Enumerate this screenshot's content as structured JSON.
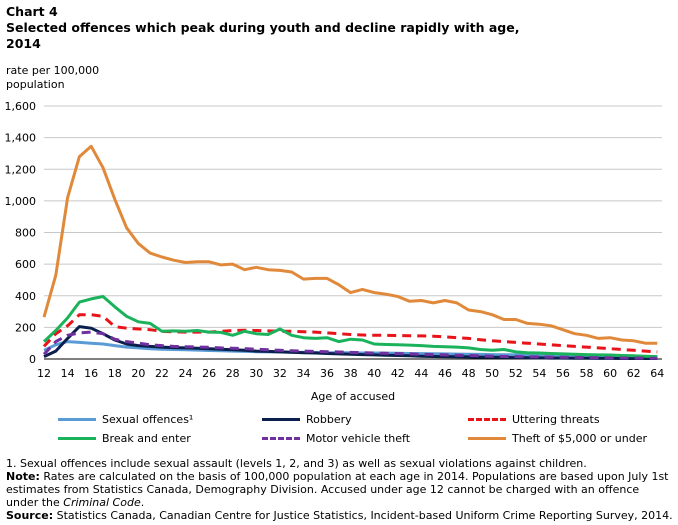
{
  "header": {
    "chart_label": "Chart 4",
    "title": "Selected offences which peak during youth and decline rapidly with age, 2014"
  },
  "y_axis_title": {
    "line1": "rate per 100,000",
    "line2": "population"
  },
  "legend": [
    {
      "label": "Sexual offences¹",
      "color": "#5b9bd5",
      "dash": "solid"
    },
    {
      "label": "Robbery",
      "color": "#0b1f4d",
      "dash": "solid"
    },
    {
      "label": "Uttering threats",
      "color": "#e8141a",
      "dash": "dashed"
    },
    {
      "label": "Break and enter",
      "color": "#1ab25b",
      "dash": "solid"
    },
    {
      "label": "Motor vehicle theft",
      "color": "#7030a0",
      "dash": "dashed"
    },
    {
      "label": "Theft of $5,000 or under",
      "color": "#e0893a",
      "dash": "solid"
    }
  ],
  "notes": {
    "footnote": "1. Sexual offences include sexual assault (levels 1, 2, and 3) as well as sexual violations against children.",
    "note_label": "Note:",
    "note_text_a": " Rates are calculated on the basis of 100,000 population at each age in 2014. Populations are based upon July 1st estimates from Statistics Canada, Demography Division. Accused under age 12 cannot be charged with an offence under the ",
    "note_italic": "Criminal Code",
    "note_text_b": ".",
    "source_label": "Source:",
    "source_text": " Statistics Canada, Canadian Centre for Justice Statistics, Incident-based Uniform Crime Reporting Survey, 2014."
  },
  "chart_data": {
    "type": "line",
    "xlabel": "Age of accused",
    "ylabel": "rate per 100,000 population",
    "ylim": [
      0,
      1600
    ],
    "yticks": [
      0,
      200,
      400,
      600,
      800,
      1000,
      1200,
      1400,
      1600
    ],
    "yticklabels": [
      "0",
      "200",
      "400",
      "600",
      "800",
      "1,000",
      "1,200",
      "1,400",
      "1,600"
    ],
    "xticks": [
      12,
      14,
      16,
      18,
      20,
      22,
      24,
      26,
      28,
      30,
      32,
      34,
      36,
      38,
      40,
      42,
      44,
      46,
      48,
      50,
      52,
      54,
      56,
      58,
      60,
      62,
      64
    ],
    "grid": "horizontal",
    "legend_position": "bottom",
    "x": [
      12,
      13,
      14,
      15,
      16,
      17,
      18,
      19,
      20,
      21,
      22,
      23,
      24,
      25,
      26,
      27,
      28,
      29,
      30,
      31,
      32,
      33,
      34,
      35,
      36,
      37,
      38,
      39,
      40,
      41,
      42,
      43,
      44,
      45,
      46,
      47,
      48,
      49,
      50,
      51,
      52,
      53,
      54,
      55,
      56,
      57,
      58,
      59,
      60,
      61,
      62,
      63,
      64
    ],
    "series": [
      {
        "name": "Sexual offences¹",
        "color": "#5b9bd5",
        "dash": "solid",
        "values": [
          55,
          90,
          110,
          105,
          100,
          95,
          85,
          75,
          70,
          65,
          62,
          60,
          58,
          56,
          54,
          52,
          50,
          48,
          46,
          45,
          44,
          43,
          42,
          41,
          40,
          40,
          39,
          38,
          38,
          37,
          36,
          35,
          34,
          33,
          32,
          31,
          30,
          29,
          28,
          27,
          26,
          25,
          24,
          23,
          22,
          21,
          20,
          19,
          18,
          17,
          16,
          15,
          14
        ]
      },
      {
        "name": "Robbery",
        "color": "#0b1f4d",
        "dash": "solid",
        "values": [
          15,
          50,
          130,
          205,
          195,
          160,
          120,
          95,
          85,
          80,
          75,
          72,
          70,
          68,
          65,
          62,
          58,
          55,
          50,
          48,
          45,
          43,
          40,
          38,
          35,
          32,
          30,
          28,
          26,
          24,
          22,
          20,
          18,
          16,
          15,
          14,
          13,
          12,
          11,
          10,
          9,
          8,
          7,
          6,
          6,
          5,
          5,
          4,
          4,
          3,
          3,
          3,
          3
        ]
      },
      {
        "name": "Uttering threats",
        "color": "#e8141a",
        "dash": "dashed",
        "values": [
          80,
          160,
          210,
          280,
          280,
          270,
          205,
          195,
          190,
          185,
          175,
          172,
          170,
          170,
          170,
          175,
          180,
          182,
          180,
          178,
          176,
          175,
          172,
          170,
          165,
          160,
          155,
          152,
          150,
          150,
          148,
          147,
          146,
          144,
          140,
          135,
          130,
          122,
          115,
          110,
          105,
          100,
          95,
          90,
          85,
          80,
          75,
          70,
          65,
          60,
          55,
          50,
          45
        ]
      },
      {
        "name": "Break and enter",
        "color": "#1ab25b",
        "dash": "solid",
        "values": [
          110,
          180,
          260,
          360,
          380,
          395,
          330,
          270,
          235,
          225,
          175,
          178,
          175,
          180,
          170,
          168,
          150,
          175,
          160,
          155,
          190,
          150,
          135,
          130,
          135,
          110,
          125,
          120,
          95,
          92,
          90,
          88,
          85,
          80,
          78,
          75,
          70,
          60,
          55,
          60,
          45,
          40,
          38,
          35,
          32,
          30,
          28,
          26,
          25,
          22,
          20,
          18,
          15
        ]
      },
      {
        "name": "Motor vehicle theft",
        "color": "#7030a0",
        "dash": "dashed",
        "values": [
          30,
          110,
          150,
          165,
          170,
          160,
          125,
          110,
          100,
          90,
          85,
          80,
          78,
          76,
          74,
          70,
          68,
          66,
          62,
          58,
          55,
          52,
          50,
          48,
          46,
          44,
          42,
          40,
          38,
          36,
          34,
          32,
          30,
          28,
          26,
          24,
          22,
          20,
          18,
          16,
          15,
          14,
          13,
          12,
          11,
          10,
          9,
          8,
          7,
          6,
          6,
          5,
          5
        ]
      },
      {
        "name": "Theft of $5,000 or under",
        "color": "#e0893a",
        "dash": "solid",
        "values": [
          265,
          530,
          1020,
          1280,
          1345,
          1210,
          1010,
          830,
          730,
          670,
          645,
          625,
          610,
          615,
          615,
          595,
          600,
          565,
          580,
          565,
          560,
          550,
          505,
          510,
          510,
          470,
          420,
          440,
          420,
          410,
          395,
          365,
          370,
          355,
          370,
          355,
          310,
          300,
          280,
          250,
          250,
          225,
          220,
          210,
          185,
          160,
          150,
          130,
          135,
          120,
          115,
          100,
          100
        ]
      }
    ]
  }
}
